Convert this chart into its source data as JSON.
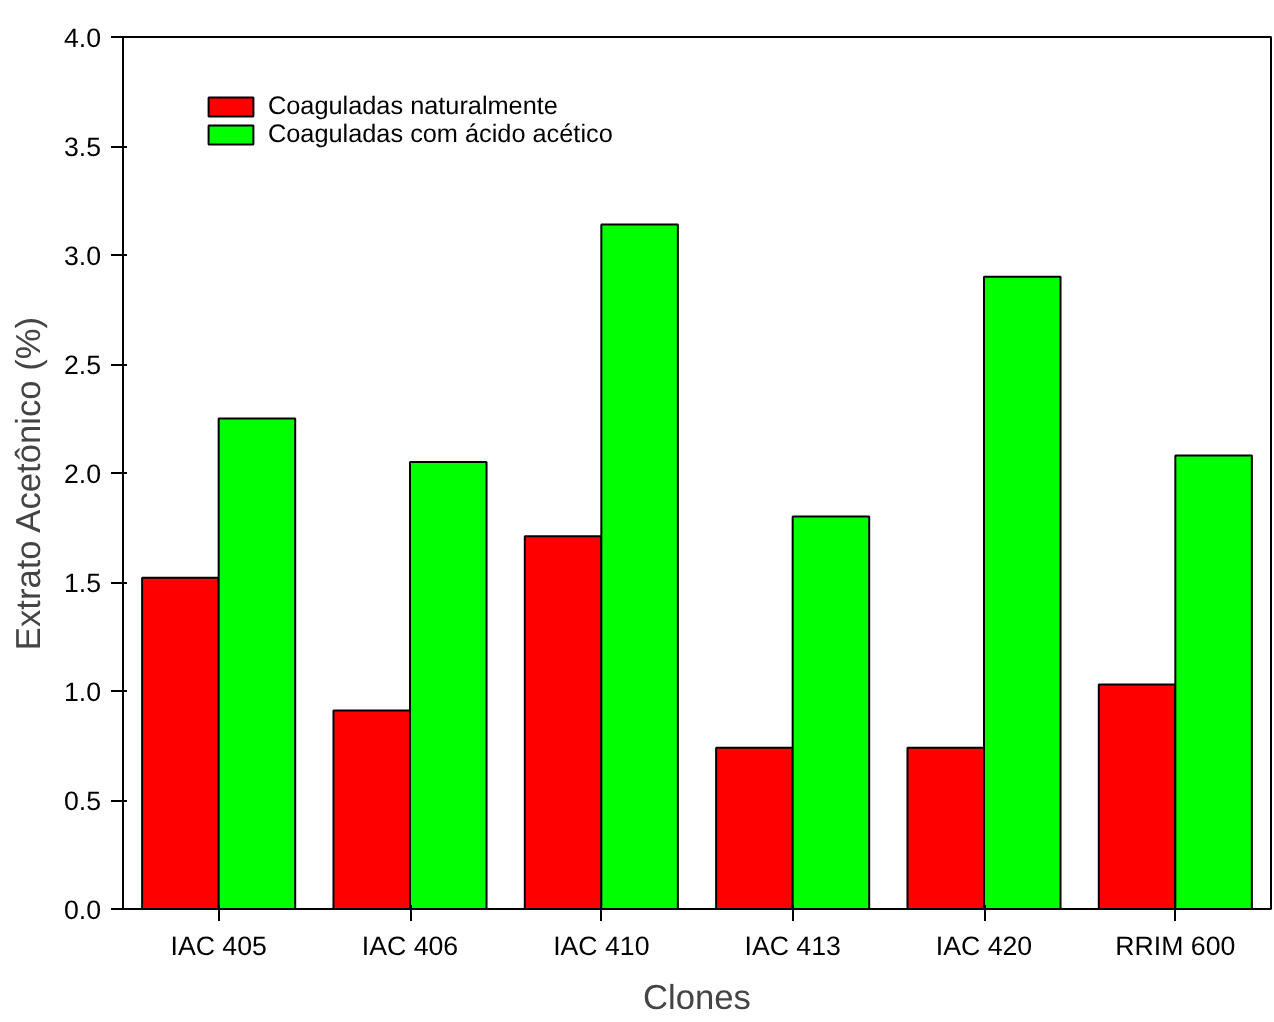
{
  "chart_data": {
    "type": "bar",
    "xlabel": "Clones",
    "ylabel": "Extrato  Acetônico  (%)",
    "categories": [
      "IAC 405",
      "IAC 406",
      "IAC 410",
      "IAC 413",
      "IAC 420",
      "RRIM 600"
    ],
    "series": [
      {
        "name": "Coaguladas naturalmente",
        "color": "#ff0000",
        "values": [
          1.52,
          0.91,
          1.71,
          0.74,
          0.74,
          1.03
        ]
      },
      {
        "name": "Coaguladas com ácido acético",
        "color": "#00ff00",
        "values": [
          2.25,
          2.05,
          3.14,
          1.8,
          2.9,
          2.08
        ]
      }
    ],
    "ylim": [
      0,
      4.0
    ],
    "yticks": [
      {
        "value": 0,
        "label": "0.0"
      },
      0.5,
      {
        "value": 1,
        "label": "1.0"
      },
      1.5,
      {
        "value": 2,
        "label": "2.0"
      },
      2.5,
      {
        "value": 3,
        "label": "3.0"
      },
      3.5,
      {
        "value": 4,
        "label": "4.0"
      }
    ],
    "grid": false,
    "legend": "top left"
  }
}
